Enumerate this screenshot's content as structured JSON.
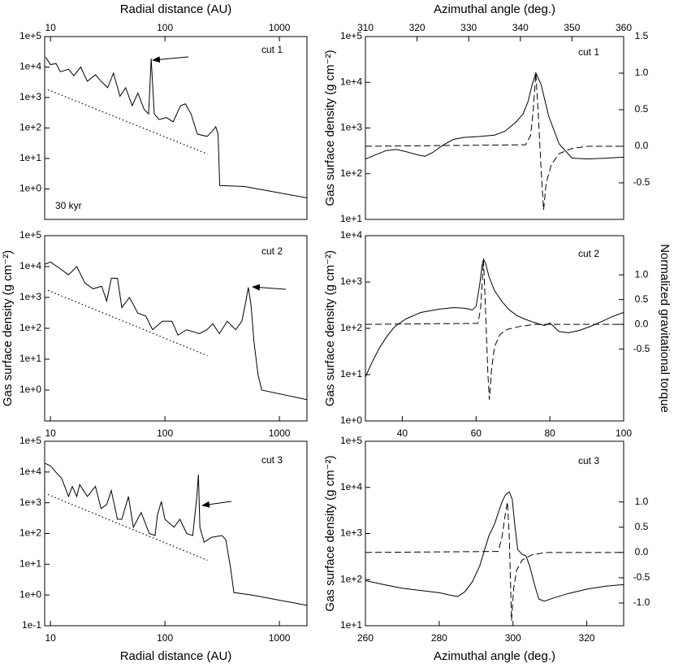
{
  "chart_data": [
    {
      "type": "line",
      "xlabel": "Radial distance (AU)",
      "xtick_side": "top",
      "xscale": "log",
      "yscale": "log",
      "xlim": [
        8.9,
        1740
      ],
      "xticks": [
        10,
        100,
        1000
      ],
      "ylim": [
        0.1,
        100000
      ],
      "yticks": [
        {
          "value": 1,
          "label": "1e+0"
        },
        {
          "value": 10,
          "label": "1e+1"
        },
        {
          "value": 100,
          "label": "1e+2"
        },
        {
          "value": 1000,
          "label": "1e+3"
        },
        {
          "value": 10000,
          "label": "1e+4"
        },
        {
          "value": 100000,
          "label": "1e+5"
        }
      ],
      "annotations": [
        "cut 1",
        "30 kyr"
      ],
      "series": [
        {
          "color": "#000000",
          "dash": "solid",
          "x": [
            9.1,
            10,
            11.2,
            12.2,
            14.4,
            16,
            18.4,
            21,
            24.7,
            27.7,
            31.6,
            35.5,
            40.5,
            45.4,
            51.8,
            58,
            66,
            72,
            75.8,
            80.7,
            89,
            103,
            118,
            137,
            151,
            169,
            192,
            234,
            264,
            278,
            291,
            301,
            495,
            1740
          ],
          "values": [
            21000,
            12000,
            13000,
            7000,
            8500,
            5200,
            10000,
            3400,
            5600,
            3400,
            2100,
            6300,
            1100,
            2100,
            540,
            1400,
            400,
            290,
            19000,
            290,
            190,
            220,
            160,
            540,
            620,
            290,
            63,
            53,
            84,
            110,
            63,
            1.3,
            1.2,
            0.51
          ]
        },
        {
          "color": "#000000",
          "dash": "dotted",
          "x": [
            9.5,
            235
          ],
          "values": [
            1800,
            14
          ]
        }
      ]
    },
    {
      "type": "line",
      "xlabel": "Azimuthal angle (deg.)",
      "xtick_side": "top",
      "yscale": "log",
      "ylabel": "Gas surface density (g cm⁻²)",
      "xlim": [
        310,
        360
      ],
      "xticks": [
        310,
        320,
        330,
        340,
        350,
        360
      ],
      "ylim": [
        10,
        100000
      ],
      "yticks": [
        {
          "value": 10,
          "label": "1e+1"
        },
        {
          "value": 100,
          "label": "1e+2"
        },
        {
          "value": 1000,
          "label": "1e+3"
        },
        {
          "value": 10000,
          "label": "1e+4"
        },
        {
          "value": 100000,
          "label": "1e+5"
        }
      ],
      "y2lim": [
        -1,
        1.5
      ],
      "y2ticks": [
        -0.5,
        {
          "value": 0,
          "label": "0.0"
        },
        0.5,
        {
          "value": 1,
          "label": "1.0"
        },
        1.5
      ],
      "annotations": [
        "cut 1"
      ],
      "series": [
        {
          "color": "#000000",
          "dash": "solid",
          "x": [
            310,
            312,
            314,
            316,
            318,
            320,
            321.5,
            323,
            325,
            327,
            329,
            332,
            335,
            337,
            339,
            340.5,
            341.5,
            342.3,
            343,
            344,
            345.5,
            347.5,
            350,
            353,
            357,
            360
          ],
          "values": [
            210,
            260,
            320,
            340,
            300,
            260,
            240,
            290,
            420,
            560,
            620,
            650,
            700,
            850,
            1300,
            2000,
            3800,
            9000,
            16000,
            9000,
            1800,
            450,
            220,
            210,
            220,
            230
          ]
        },
        {
          "color": "#000000",
          "dash": "dashed",
          "axis": "y2",
          "x": [
            310,
            341,
            342,
            342.5,
            343,
            343.5,
            344,
            344.5,
            345,
            346,
            347.5,
            350,
            353,
            360
          ],
          "values": [
            0,
            0.02,
            0.15,
            0.5,
            1.0,
            0.4,
            -0.3,
            -0.87,
            -0.5,
            -0.25,
            -0.1,
            -0.03,
            0,
            0
          ]
        }
      ]
    },
    {
      "type": "line",
      "xtick_side": "bottom",
      "xscale": "log",
      "yscale": "log",
      "ylabel": "Gas surface density (g cm⁻²)",
      "xlim": [
        8.9,
        1740
      ],
      "xticks": [
        10,
        100,
        1000
      ],
      "ylim": [
        0.1,
        100000
      ],
      "yticks": [
        {
          "value": 1,
          "label": "1e+0"
        },
        {
          "value": 10,
          "label": "1e+1"
        },
        {
          "value": 100,
          "label": "1e+2"
        },
        {
          "value": 1000,
          "label": "1e+3"
        },
        {
          "value": 10000,
          "label": "1e+4"
        },
        {
          "value": 100000,
          "label": "1e+5"
        }
      ],
      "annotations": [
        "cut 2"
      ],
      "series": [
        {
          "color": "#000000",
          "dash": "solid",
          "x": [
            9,
            10,
            12,
            14.4,
            17,
            20,
            23.6,
            28,
            31,
            34,
            38.5,
            42,
            49,
            58,
            68,
            78,
            95,
            115,
            130,
            155,
            200,
            233,
            262,
            299,
            350,
            415,
            470,
            510,
            535,
            565,
            600,
            650,
            700,
            1740
          ],
          "values": [
            12000,
            14000,
            8800,
            5400,
            10000,
            2900,
            1900,
            2300,
            760,
            4200,
            4200,
            470,
            1000,
            310,
            250,
            90,
            170,
            170,
            60,
            90,
            67,
            90,
            140,
            67,
            170,
            90,
            170,
            770,
            2100,
            570,
            36,
            3.2,
            1.0,
            0.49
          ]
        },
        {
          "color": "#000000",
          "dash": "dotted",
          "x": [
            9.5,
            235
          ],
          "values": [
            1700,
            13
          ]
        }
      ]
    },
    {
      "type": "line",
      "xtick_side": "bottom",
      "yscale": "log",
      "ylabel": "Gas surface density (g cm⁻²)",
      "y2label": "Normalized gravitational torque",
      "xlim": [
        30,
        100
      ],
      "xticks": [
        40,
        60,
        80,
        100
      ],
      "ylim": [
        1,
        10000
      ],
      "yticks": [
        {
          "value": 1,
          "label": "1e+0"
        },
        {
          "value": 10,
          "label": "1e+1"
        },
        {
          "value": 100,
          "label": "1e+2"
        },
        {
          "value": 1000,
          "label": "1e+3"
        },
        {
          "value": 10000,
          "label": "1e+4"
        }
      ],
      "y2lim": [
        -1.95,
        1.79
      ],
      "y2ticks": [
        -0.5,
        {
          "value": 0,
          "label": "0.0"
        },
        0.5,
        {
          "value": 1,
          "label": "1.0"
        }
      ],
      "annotations": [
        "cut 2"
      ],
      "series": [
        {
          "color": "#000000",
          "dash": "solid",
          "x": [
            30,
            32,
            34,
            36,
            38,
            41,
            45,
            50,
            54,
            57,
            59,
            60,
            61,
            61.6,
            62,
            62.6,
            63.5,
            65,
            67,
            69,
            71,
            73,
            75,
            77,
            78.5,
            80,
            81,
            82.5,
            85,
            88,
            91,
            94,
            97,
            100
          ],
          "values": [
            9,
            20,
            40,
            70,
            110,
            160,
            220,
            260,
            280,
            270,
            250,
            300,
            900,
            2200,
            3100,
            2500,
            1300,
            650,
            380,
            250,
            190,
            160,
            140,
            125,
            115,
            130,
            110,
            85,
            80,
            90,
            110,
            140,
            180,
            220
          ]
        },
        {
          "color": "#000000",
          "dash": "dashed",
          "axis": "y2",
          "x": [
            30,
            60.5,
            61.2,
            61.7,
            62,
            62.4,
            62.8,
            63.2,
            63.6,
            64.2,
            65,
            66.5,
            68.5,
            72,
            76,
            100
          ],
          "values": [
            0,
            0.02,
            0.3,
            0.9,
            1.3,
            0.6,
            -0.2,
            -1.0,
            -1.52,
            -0.9,
            -0.45,
            -0.2,
            -0.1,
            -0.04,
            0,
            0
          ]
        }
      ]
    },
    {
      "type": "line",
      "xlabel": "Radial distance (AU)",
      "xtick_side": "bottom",
      "xscale": "log",
      "yscale": "log",
      "xlim": [
        8.9,
        1740
      ],
      "xticks": [
        10,
        100,
        1000
      ],
      "ylim": [
        0.1,
        100000
      ],
      "yticks": [
        {
          "value": 0.1,
          "label": "1e-1"
        },
        {
          "value": 1,
          "label": "1e+0"
        },
        {
          "value": 10,
          "label": "1e+1"
        },
        {
          "value": 100,
          "label": "1e+2"
        },
        {
          "value": 1000,
          "label": "1e+3"
        },
        {
          "value": 10000,
          "label": "1e+4"
        },
        {
          "value": 100000,
          "label": "1e+5"
        }
      ],
      "annotations": [
        "cut 3"
      ],
      "series": [
        {
          "color": "#000000",
          "dash": "solid",
          "x": [
            9,
            10,
            11.2,
            12.5,
            14.4,
            15.5,
            17,
            18,
            21,
            24.7,
            27.7,
            31,
            34,
            38.5,
            42,
            48,
            53,
            62,
            73,
            82,
            86,
            93,
            100,
            120,
            135,
            155,
            175,
            190,
            196,
            202,
            220,
            255,
            315,
            340,
            375,
            400,
            570,
            1740
          ],
          "values": [
            19000,
            16000,
            9700,
            6300,
            1600,
            3400,
            1600,
            3900,
            1600,
            3400,
            650,
            880,
            2500,
            290,
            290,
            1600,
            160,
            480,
            100,
            86,
            400,
            1100,
            290,
            160,
            290,
            100,
            86,
            1600,
            8300,
            160,
            52,
            75,
            86,
            63,
            7.3,
            1.2,
            1.0,
            0.46
          ]
        },
        {
          "color": "#000000",
          "dash": "dotted",
          "x": [
            9.5,
            235
          ],
          "values": [
            1850,
            13.5
          ]
        }
      ]
    },
    {
      "type": "line",
      "xlabel": "Azimuthal angle (deg.)",
      "xtick_side": "bottom",
      "yscale": "log",
      "ylabel": "Gas surface density (g cm⁻²)",
      "xlim": [
        260,
        330
      ],
      "xticks": [
        260,
        280,
        300,
        320
      ],
      "ylim": [
        10,
        100000
      ],
      "yticks": [
        {
          "value": 10,
          "label": "1e+1"
        },
        {
          "value": 100,
          "label": "1e+2"
        },
        {
          "value": 1000,
          "label": "1e+3"
        },
        {
          "value": 10000,
          "label": "1e+4"
        },
        {
          "value": 100000,
          "label": "1e+5"
        }
      ],
      "y2lim": [
        -1.45,
        2.2
      ],
      "y2ticks": [
        {
          "value": -1,
          "label": "-1.0"
        },
        -0.5,
        {
          "value": 0,
          "label": "0.0"
        },
        0.5,
        {
          "value": 1,
          "label": "1.0"
        }
      ],
      "annotations": [
        "cut 3"
      ],
      "series": [
        {
          "color": "#000000",
          "dash": "solid",
          "x": [
            260,
            265,
            270,
            275,
            280,
            283,
            285,
            287,
            289,
            291,
            292.5,
            293.5,
            295,
            296,
            297,
            298,
            299,
            299.8,
            300.5,
            301.3,
            302.5,
            303.5,
            304.5,
            306,
            307,
            308.5,
            311,
            315,
            320,
            325,
            330
          ],
          "values": [
            95,
            78,
            65,
            58,
            52,
            46,
            43,
            55,
            90,
            200,
            500,
            900,
            1600,
            2800,
            4800,
            7000,
            8000,
            5500,
            1500,
            450,
            350,
            330,
            200,
            70,
            38,
            34,
            40,
            50,
            62,
            72,
            78
          ]
        },
        {
          "color": "#000000",
          "dash": "dashed",
          "axis": "y2",
          "x": [
            260,
            296,
            297,
            298,
            298.5,
            299,
            299.3,
            299.6,
            300.2,
            301,
            302.5,
            305,
            309,
            330
          ],
          "values": [
            0,
            0.02,
            0.3,
            0.8,
            1.0,
            0.3,
            -0.5,
            -1.35,
            -0.7,
            -0.35,
            -0.15,
            -0.05,
            0,
            0
          ]
        }
      ]
    }
  ]
}
